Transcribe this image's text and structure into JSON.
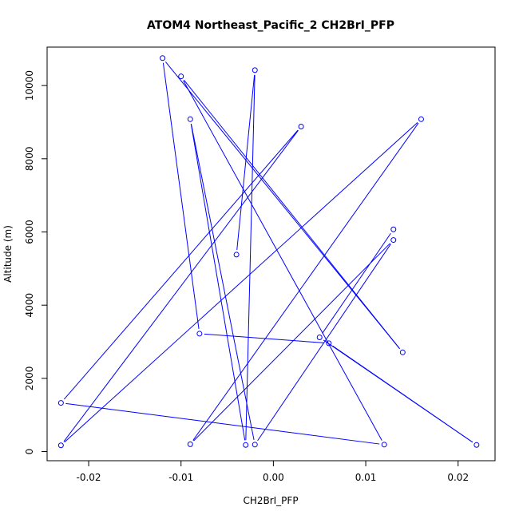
{
  "chart_data": {
    "type": "line",
    "title": "ATOM4 Northeast_Pacific_2 CH2BrI_PFP",
    "xlabel": "CH2BrI_PFP",
    "ylabel": "Altitude (m)",
    "xlim": [
      -0.0245,
      0.024
    ],
    "ylim": [
      -250,
      11050
    ],
    "x_ticks": [
      -0.02,
      -0.01,
      0.0,
      0.01,
      0.02
    ],
    "x_tick_labels": [
      "-0.02",
      "-0.01",
      "0.00",
      "0.01",
      "0.02"
    ],
    "y_ticks": [
      0,
      2000,
      4000,
      6000,
      8000,
      10000
    ],
    "y_tick_labels": [
      "0",
      "2000",
      "4000",
      "6000",
      "8000",
      "10000"
    ],
    "grid": false,
    "series": [
      {
        "color": "#0000ff",
        "marker": "open-circle",
        "points": [
          {
            "x": -0.004,
            "y": 5380
          },
          {
            "x": -0.002,
            "y": 10420
          },
          {
            "x": -0.003,
            "y": 180
          },
          {
            "x": -0.009,
            "y": 9080
          },
          {
            "x": -0.002,
            "y": 190
          },
          {
            "x": 0.013,
            "y": 5780
          },
          {
            "x": -0.009,
            "y": 200
          },
          {
            "x": 0.016,
            "y": 9080
          },
          {
            "x": -0.023,
            "y": 170
          },
          {
            "x": 0.003,
            "y": 8880
          },
          {
            "x": -0.023,
            "y": 1330
          },
          {
            "x": 0.012,
            "y": 190
          },
          {
            "x": -0.01,
            "y": 10250
          },
          {
            "x": 0.014,
            "y": 2710
          },
          {
            "x": -0.012,
            "y": 10750
          },
          {
            "x": -0.008,
            "y": 3220
          },
          {
            "x": 0.006,
            "y": 2960
          },
          {
            "x": 0.022,
            "y": 180
          },
          {
            "x": 0.005,
            "y": 3120
          },
          {
            "x": 0.013,
            "y": 6070
          }
        ]
      }
    ]
  }
}
